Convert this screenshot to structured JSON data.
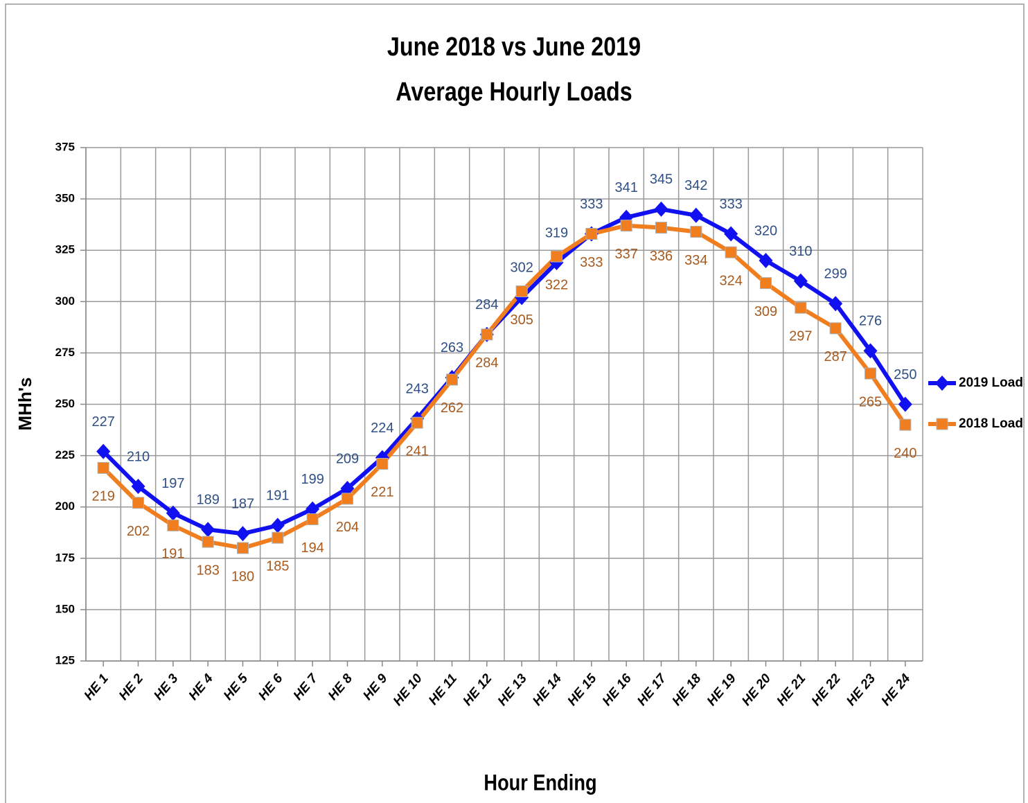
{
  "chart_data": {
    "type": "line",
    "title": "June 2018 vs June 2019",
    "subtitle": "Average Hourly Loads",
    "x_label": "Hour Ending",
    "y_label": "MHh's",
    "categories": [
      "HE 1",
      "HE 2",
      "HE 3",
      "HE 4",
      "HE 5",
      "HE 6",
      "HE 7",
      "HE 8",
      "HE 9",
      "HE 10",
      "HE 11",
      "HE 12",
      "HE 13",
      "HE 14",
      "HE 15",
      "HE 16",
      "HE 17",
      "HE 18",
      "HE 19",
      "HE 20",
      "HE 21",
      "HE 22",
      "HE 23",
      "HE 24"
    ],
    "series": [
      {
        "name": "2019 Load",
        "color": "#1010f0",
        "label_color": "#2f4f85",
        "marker": "diamond",
        "label_side": "above",
        "values": [
          227,
          210,
          197,
          189,
          187,
          191,
          199,
          209,
          224,
          243,
          263,
          284,
          302,
          319,
          333,
          341,
          345,
          342,
          333,
          320,
          310,
          299,
          276,
          250
        ]
      },
      {
        "name": "2018 Load",
        "color": "#f07d1e",
        "label_color": "#a85a1e",
        "marker": "square",
        "label_side": "below",
        "values": [
          219,
          202,
          191,
          183,
          180,
          185,
          194,
          204,
          221,
          241,
          262,
          284,
          305,
          322,
          333,
          337,
          336,
          334,
          324,
          309,
          297,
          287,
          265,
          240
        ]
      }
    ],
    "ylim": [
      125,
      375
    ],
    "yticks": [
      125,
      150,
      175,
      200,
      225,
      250,
      275,
      300,
      325,
      350,
      375
    ],
    "grid": true,
    "legend_position": "right"
  }
}
